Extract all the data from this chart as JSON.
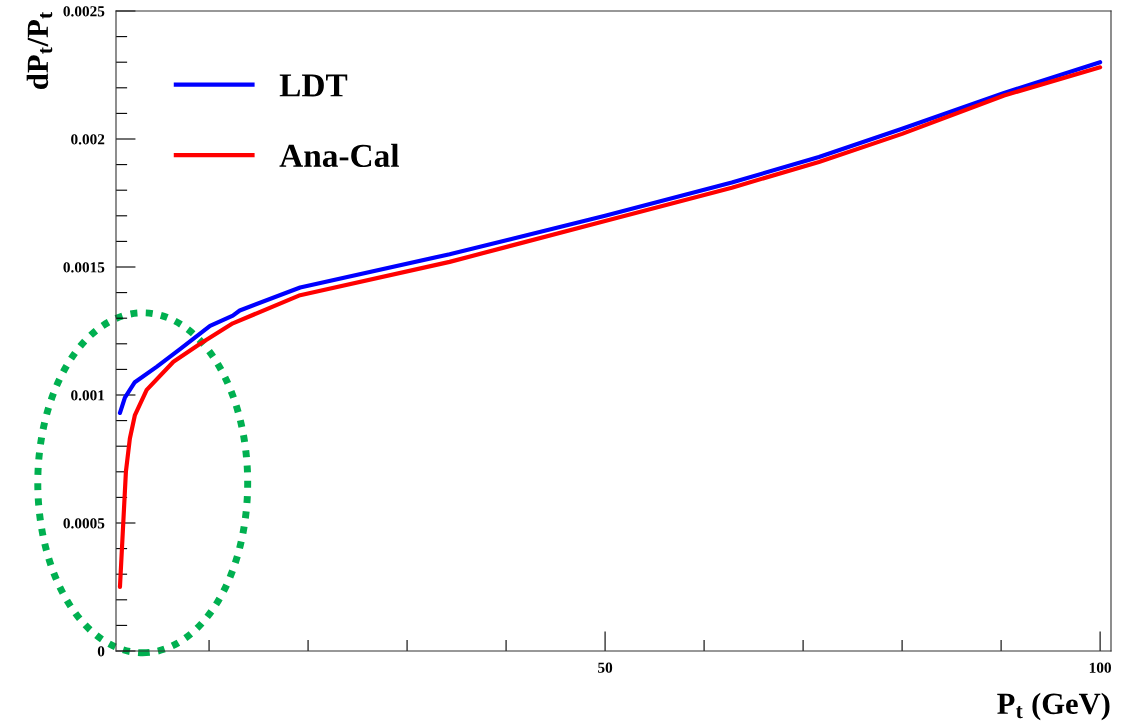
{
  "chart_data": {
    "type": "line",
    "xlabel": "P$_{t}$ (GeV)",
    "ylabel": "dP$_{t}$/P$_{t}$",
    "xlim": [
      0.6,
      101.1
    ],
    "ylim": [
      0,
      0.0025
    ],
    "xticks": [
      {
        "value": 10,
        "label": null
      },
      {
        "value": 20,
        "label": null
      },
      {
        "value": 30,
        "label": null
      },
      {
        "value": 40,
        "label": null
      },
      50,
      {
        "value": 60,
        "label": null
      },
      {
        "value": 70,
        "label": null
      },
      {
        "value": 80,
        "label": null
      },
      {
        "value": 90,
        "label": null
      },
      100
    ],
    "yticks": [
      0,
      {
        "value": 0.0001,
        "label": null
      },
      {
        "value": 0.0002,
        "label": null
      },
      {
        "value": 0.0003,
        "label": null
      },
      {
        "value": 0.0004,
        "label": null
      },
      0.0005,
      {
        "value": 0.0006,
        "label": null
      },
      {
        "value": 0.0007,
        "label": null
      },
      {
        "value": 0.0008,
        "label": null
      },
      {
        "value": 0.0009,
        "label": null
      },
      0.001,
      {
        "value": 0.0011,
        "label": null
      },
      {
        "value": 0.0012,
        "label": null
      },
      {
        "value": 0.0013,
        "label": null
      },
      {
        "value": 0.0014,
        "label": null
      },
      0.0015,
      {
        "value": 0.0016,
        "label": null
      },
      {
        "value": 0.0017,
        "label": null
      },
      {
        "value": 0.0018,
        "label": null
      },
      {
        "value": 0.0019,
        "label": null
      },
      0.002,
      {
        "value": 0.0021,
        "label": null
      },
      {
        "value": 0.0022,
        "label": null
      },
      {
        "value": 0.0023,
        "label": null
      },
      {
        "value": 0.0024,
        "label": null
      },
      0.0025
    ],
    "grid": false,
    "legend": "top left",
    "marker": "none",
    "line_style": "solid",
    "series": [
      {
        "name": "LDT",
        "color": "#0000ff",
        "x": [
          1.0,
          1.5,
          2.5,
          4.7,
          7.1,
          10.1,
          12.4,
          13.1,
          19.2,
          34.3,
          50,
          62.8,
          71.6,
          80,
          90.3,
          100
        ],
        "values": [
          0.00093,
          0.00099,
          0.00105,
          0.00111,
          0.00118,
          0.00127,
          0.00131,
          0.00133,
          0.00142,
          0.00155,
          0.0017,
          0.00183,
          0.00193,
          0.00204,
          0.00218,
          0.0023
        ]
      },
      {
        "name": "Ana-Cal",
        "color": "#ff0000",
        "x": [
          1.0,
          1.28,
          1.6,
          2.0,
          2.5,
          3.7,
          6.4,
          9.1,
          12.4,
          19.2,
          34.3,
          50,
          62.8,
          71.6,
          80,
          90.3,
          100
        ],
        "values": [
          0.00025,
          0.00046,
          0.0007,
          0.00083,
          0.00092,
          0.00102,
          0.00113,
          0.0012,
          0.00128,
          0.00139,
          0.00152,
          0.00168,
          0.00181,
          0.00191,
          0.00202,
          0.00217,
          0.00228
        ]
      }
    ]
  }
}
